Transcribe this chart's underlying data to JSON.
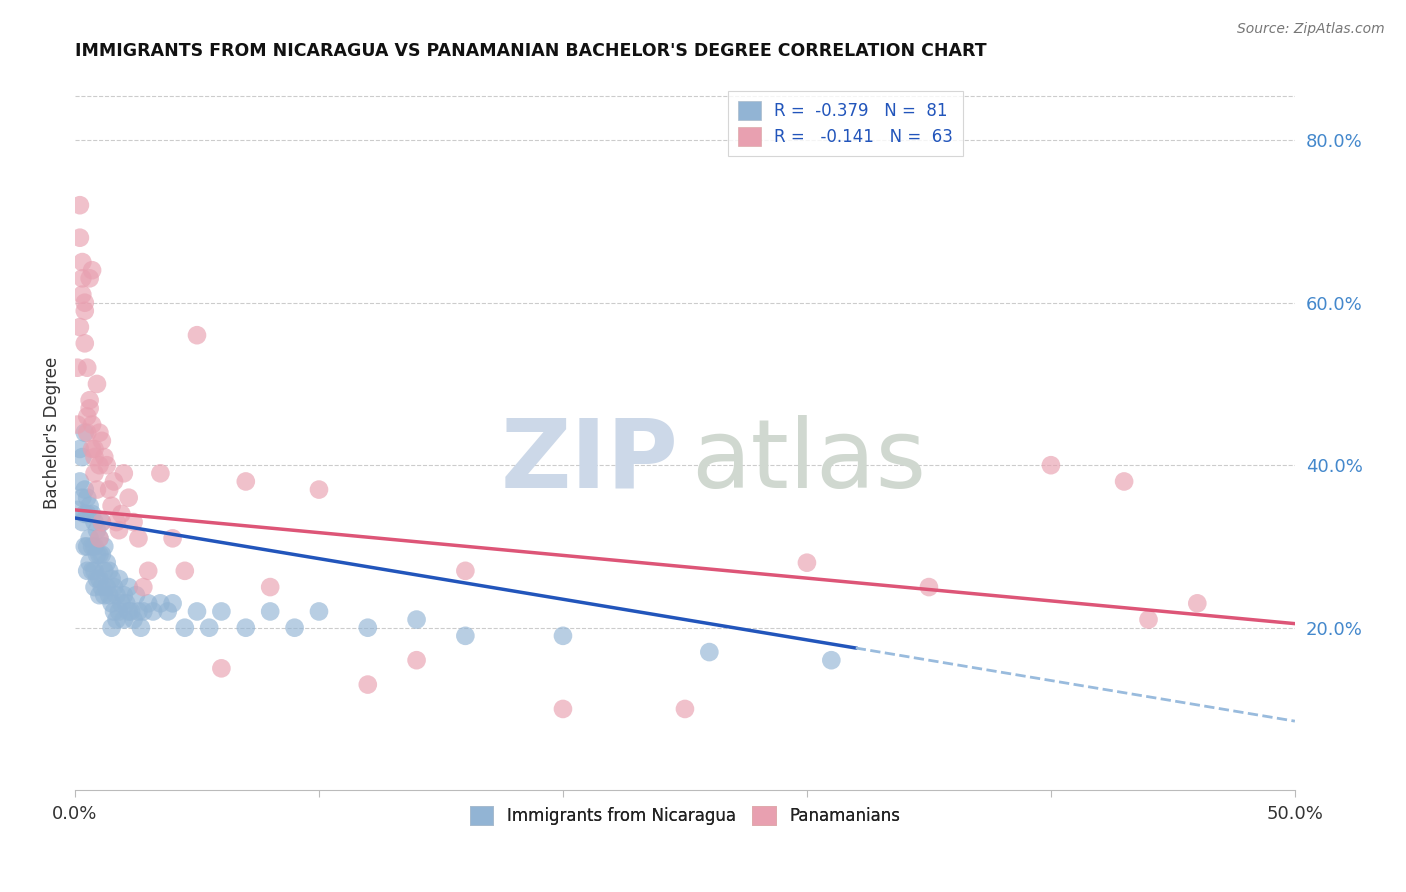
{
  "title": "IMMIGRANTS FROM NICARAGUA VS PANAMANIAN BACHELOR'S DEGREE CORRELATION CHART",
  "source": "Source: ZipAtlas.com",
  "ylabel": "Bachelor's Degree",
  "right_yticks": [
    "20.0%",
    "40.0%",
    "60.0%",
    "80.0%"
  ],
  "right_ytick_vals": [
    0.2,
    0.4,
    0.6,
    0.8
  ],
  "xlim": [
    0.0,
    0.5
  ],
  "ylim": [
    0.0,
    0.88
  ],
  "color_blue": "#92b4d4",
  "color_pink": "#e8a0b0",
  "color_line_blue": "#2255bb",
  "color_line_pink": "#dd5577",
  "color_line_dashed": "#99bbdd",
  "nicaragua_x": [
    0.001,
    0.002,
    0.002,
    0.003,
    0.003,
    0.003,
    0.004,
    0.004,
    0.004,
    0.004,
    0.005,
    0.005,
    0.005,
    0.005,
    0.006,
    0.006,
    0.006,
    0.007,
    0.007,
    0.007,
    0.008,
    0.008,
    0.008,
    0.008,
    0.009,
    0.009,
    0.009,
    0.01,
    0.01,
    0.01,
    0.01,
    0.011,
    0.011,
    0.011,
    0.012,
    0.012,
    0.012,
    0.013,
    0.013,
    0.014,
    0.014,
    0.015,
    0.015,
    0.015,
    0.016,
    0.016,
    0.017,
    0.017,
    0.018,
    0.018,
    0.019,
    0.02,
    0.02,
    0.021,
    0.022,
    0.022,
    0.023,
    0.024,
    0.025,
    0.026,
    0.027,
    0.028,
    0.03,
    0.032,
    0.035,
    0.038,
    0.04,
    0.045,
    0.05,
    0.055,
    0.06,
    0.07,
    0.08,
    0.09,
    0.1,
    0.12,
    0.14,
    0.16,
    0.2,
    0.26,
    0.31
  ],
  "nicaragua_y": [
    0.345,
    0.38,
    0.42,
    0.36,
    0.41,
    0.33,
    0.44,
    0.37,
    0.34,
    0.3,
    0.36,
    0.34,
    0.3,
    0.27,
    0.35,
    0.31,
    0.28,
    0.34,
    0.3,
    0.27,
    0.33,
    0.3,
    0.27,
    0.25,
    0.32,
    0.29,
    0.26,
    0.31,
    0.29,
    0.26,
    0.24,
    0.33,
    0.29,
    0.25,
    0.3,
    0.27,
    0.24,
    0.28,
    0.25,
    0.27,
    0.24,
    0.26,
    0.23,
    0.2,
    0.25,
    0.22,
    0.24,
    0.21,
    0.26,
    0.22,
    0.23,
    0.24,
    0.21,
    0.23,
    0.22,
    0.25,
    0.22,
    0.21,
    0.24,
    0.22,
    0.2,
    0.22,
    0.23,
    0.22,
    0.23,
    0.22,
    0.23,
    0.2,
    0.22,
    0.2,
    0.22,
    0.2,
    0.22,
    0.2,
    0.22,
    0.2,
    0.21,
    0.19,
    0.19,
    0.17,
    0.16
  ],
  "panama_x": [
    0.001,
    0.001,
    0.002,
    0.002,
    0.003,
    0.003,
    0.004,
    0.004,
    0.005,
    0.005,
    0.006,
    0.006,
    0.007,
    0.007,
    0.008,
    0.008,
    0.009,
    0.01,
    0.01,
    0.011,
    0.012,
    0.013,
    0.014,
    0.015,
    0.016,
    0.017,
    0.018,
    0.019,
    0.02,
    0.022,
    0.024,
    0.026,
    0.028,
    0.03,
    0.035,
    0.04,
    0.045,
    0.05,
    0.06,
    0.07,
    0.08,
    0.1,
    0.12,
    0.14,
    0.16,
    0.2,
    0.25,
    0.3,
    0.35,
    0.4,
    0.43,
    0.44,
    0.46,
    0.002,
    0.003,
    0.004,
    0.005,
    0.006,
    0.007,
    0.008,
    0.009,
    0.01,
    0.011
  ],
  "panama_y": [
    0.52,
    0.45,
    0.72,
    0.68,
    0.61,
    0.63,
    0.59,
    0.55,
    0.52,
    0.46,
    0.63,
    0.47,
    0.64,
    0.42,
    0.42,
    0.39,
    0.5,
    0.44,
    0.4,
    0.43,
    0.41,
    0.4,
    0.37,
    0.35,
    0.38,
    0.33,
    0.32,
    0.34,
    0.39,
    0.36,
    0.33,
    0.31,
    0.25,
    0.27,
    0.39,
    0.31,
    0.27,
    0.56,
    0.15,
    0.38,
    0.25,
    0.37,
    0.13,
    0.16,
    0.27,
    0.1,
    0.1,
    0.28,
    0.25,
    0.4,
    0.38,
    0.21,
    0.23,
    0.57,
    0.65,
    0.6,
    0.44,
    0.48,
    0.45,
    0.41,
    0.37,
    0.31,
    0.33
  ],
  "nic_line_end": 0.32,
  "nic_line_intercept": 0.335,
  "nic_line_slope": -0.5,
  "pan_line_intercept": 0.345,
  "pan_line_slope": -0.28
}
